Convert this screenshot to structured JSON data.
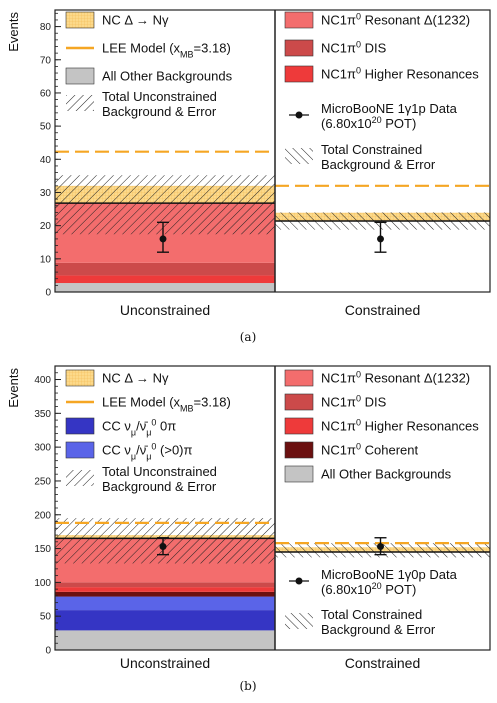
{
  "chart_data": [
    {
      "type": "bar",
      "panel_caption": "(a)",
      "ylabel": "Events",
      "ylim": [
        0,
        85
      ],
      "yticks": [
        0,
        10,
        20,
        30,
        40,
        50,
        60,
        70,
        80
      ],
      "categories": [
        "Unconstrained",
        "Constrained"
      ],
      "stack_order": [
        "All Other Backgrounds",
        "NC1π0 Higher Resonances",
        "NC1π0 DIS",
        "NC1π0 Resonant Δ(1232)",
        "NC Δ → Nγ"
      ],
      "series": [
        {
          "name": "All Other Backgrounds",
          "color": "#c4c4c4",
          "values": [
            2.7,
            null
          ]
        },
        {
          "name": "NC1π0 Higher Resonances",
          "color": "#ee3a3a",
          "values": [
            2.3,
            null
          ]
        },
        {
          "name": "NC1π0 DIS",
          "color": "#cc4a4a",
          "values": [
            3.8,
            null
          ]
        },
        {
          "name": "NC1π0 Resonant Δ(1232)",
          "color": "#f36d6d",
          "values": [
            18.0,
            null
          ]
        },
        {
          "name": "NC Δ → Nγ",
          "color": "#fcd98a",
          "values": [
            5.2,
            2.5
          ]
        }
      ],
      "constrained_background_total": 21.4,
      "lee_model_totals": [
        42.3,
        32.0
      ],
      "error_bands": [
        [
          17.4,
          35.2
        ],
        [
          18.8,
          24.0
        ]
      ],
      "data_points": [
        {
          "category": "Unconstrained",
          "value": 16,
          "error_low": 12,
          "error_high": 21
        },
        {
          "category": "Constrained",
          "value": 16,
          "error_low": 12,
          "error_high": 21
        }
      ],
      "legend_left": [
        {
          "kind": "nc-delta",
          "label": "NC Δ → Nγ"
        },
        {
          "kind": "lee",
          "label": "LEE Model (x",
          "sub": "MB",
          "label_end": "=3.18)"
        },
        {
          "kind": "other-bkg",
          "label": "All Other Backgrounds"
        },
        {
          "kind": "hatch-unc",
          "label": "Total Unconstrained",
          "label2": "Background & Error"
        }
      ],
      "legend_right": [
        {
          "kind": "nc-res",
          "label": "NC1π",
          "sup": "0",
          "label_end": " Resonant Δ(1232)"
        },
        {
          "kind": "nc-dis",
          "label": "NC1π",
          "sup": "0",
          "label_end": " DIS"
        },
        {
          "kind": "nc-higher",
          "label": "NC1π",
          "sup": "0",
          "label_end": " Higher Resonances"
        },
        {
          "kind": "data",
          "label": "MicroBooNE 1γ1p Data",
          "label2": "(6.80x10",
          "sup2": "20",
          "label2_end": " POT)"
        },
        {
          "kind": "hatch-con",
          "label": "Total Constrained",
          "label2": "Background & Error"
        }
      ]
    },
    {
      "type": "bar",
      "panel_caption": "(b)",
      "ylabel": "Events",
      "ylim": [
        0,
        420
      ],
      "yticks": [
        0,
        50,
        100,
        150,
        200,
        250,
        300,
        350,
        400
      ],
      "categories": [
        "Unconstrained",
        "Constrained"
      ],
      "stack_order": [
        "All Other Backgrounds",
        "CC νμ/ν̄μ 0π0",
        "CC νμ/ν̄μ (>0)π0",
        "NC1π0 Coherent",
        "NC1π0 Higher Resonances",
        "NC1π0 DIS",
        "NC1π0 Resonant Δ(1232)",
        "NC Δ → Nγ"
      ],
      "series": [
        {
          "name": "All Other Backgrounds",
          "color": "#c4c4c4",
          "values": [
            29,
            null
          ]
        },
        {
          "name": "CC νμ/ν̄μ 0π0",
          "color": "#3535c4",
          "values": [
            30,
            null
          ]
        },
        {
          "name": "CC νμ/ν̄μ (>0)π0",
          "color": "#5a64e8",
          "values": [
            20,
            null
          ]
        },
        {
          "name": "NC1π0 Coherent",
          "color": "#6b1010",
          "values": [
            7,
            null
          ]
        },
        {
          "name": "NC1π0 Higher Resonances",
          "color": "#ee3a3a",
          "values": [
            7,
            null
          ]
        },
        {
          "name": "NC1π0 DIS",
          "color": "#cc4a4a",
          "values": [
            7,
            null
          ]
        },
        {
          "name": "NC1π0 Resonant Δ(1232)",
          "color": "#f36d6d",
          "values": [
            65,
            null
          ]
        },
        {
          "name": "NC Δ → Nγ",
          "color": "#fcd98a",
          "values": [
            5,
            7
          ]
        }
      ],
      "constrained_background_total": 145,
      "lee_model_totals": [
        188,
        158
      ],
      "error_bands": [
        [
          128,
          195
        ],
        [
          137,
          158
        ]
      ],
      "data_points": [
        {
          "category": "Unconstrained",
          "value": 153,
          "error_low": 141,
          "error_high": 166
        },
        {
          "category": "Constrained",
          "value": 153,
          "error_low": 141,
          "error_high": 166
        }
      ],
      "legend_left": [
        {
          "kind": "nc-delta",
          "label": "NC Δ → Nγ"
        },
        {
          "kind": "lee",
          "label": "LEE Model (x",
          "sub": "MB",
          "label_end": "=3.18)"
        },
        {
          "kind": "cc0",
          "label": "CC ν",
          "sub": "μ",
          "label_mid": "/ν̄",
          "sub2": "μ",
          "label_end": " 0π",
          "sup": "0"
        },
        {
          "kind": "cc1",
          "label": "CC ν",
          "sub": "μ",
          "label_mid": "/ν̄",
          "sub2": "μ",
          "label_end": " (>0)π",
          "sup": "0"
        },
        {
          "kind": "hatch-unc",
          "label": "Total Unconstrained",
          "label2": "Background & Error"
        }
      ],
      "legend_right": [
        {
          "kind": "nc-res",
          "label": "NC1π",
          "sup": "0",
          "label_end": " Resonant Δ(1232)"
        },
        {
          "kind": "nc-dis",
          "label": "NC1π",
          "sup": "0",
          "label_end": " DIS"
        },
        {
          "kind": "nc-higher",
          "label": "NC1π",
          "sup": "0",
          "label_end": " Higher Resonances"
        },
        {
          "kind": "nc-coh",
          "label": "NC1π",
          "sup": "0",
          "label_end": " Coherent"
        },
        {
          "kind": "other-bkg",
          "label": "All Other Backgrounds"
        }
      ],
      "legend_right_lower": [
        {
          "kind": "data",
          "label": "MicroBooNE 1γ0p Data",
          "label2": "(6.80x10",
          "sup2": "20",
          "label2_end": " POT)"
        },
        {
          "kind": "hatch-con",
          "label": "Total Constrained",
          "label2": "Background & Error"
        }
      ]
    }
  ],
  "colors": {
    "lee": "#f5a623",
    "nc_delta": "#fcd98a",
    "nc_delta_grid": "#f2b955",
    "hatch": "#222222",
    "axis": "#222222"
  }
}
